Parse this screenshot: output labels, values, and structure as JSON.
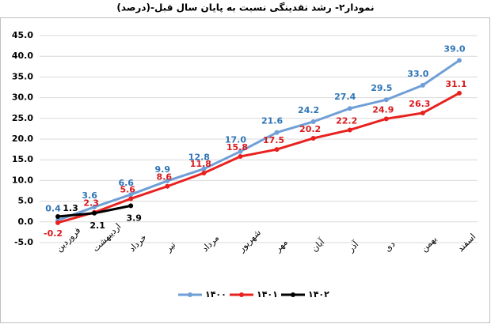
{
  "chart_data": {
    "type": "line",
    "title": "نمودار۲- رشد نقدینگی نسبت به پایان سال قبل-(درصد)",
    "categories": [
      "فروردین",
      "اردیبهشت",
      "خرداد",
      "تیر",
      "مرداد",
      "شهریور",
      "مهر",
      "آبان",
      "آذر",
      "دی",
      "بهمن",
      "اسفند"
    ],
    "series": [
      {
        "name": "۱۴۰۰",
        "color": "#6f9fd6",
        "label_color": "#2e75b6",
        "values": [
          0.4,
          3.6,
          6.6,
          9.9,
          12.8,
          17.0,
          21.6,
          24.2,
          27.4,
          29.5,
          33.0,
          39.0
        ],
        "value_labels": [
          "0.4",
          "3.6",
          "6.6",
          "9.9",
          "12.8",
          "17.0",
          "21.6",
          "24.2",
          "27.4",
          "29.5",
          "33.0",
          "39.0"
        ]
      },
      {
        "name": "۱۴۰۱",
        "color": "#e8211f",
        "label_color": "#d9191c",
        "values": [
          -0.2,
          2.3,
          5.6,
          8.6,
          11.8,
          15.8,
          17.5,
          20.2,
          22.2,
          24.9,
          26.3,
          31.1
        ],
        "value_labels": [
          "-0.2",
          "2.3",
          "5.6",
          "8.6",
          "11.8",
          "15.8",
          "17.5",
          "20.2",
          "22.2",
          "24.9",
          "26.3",
          "31.1"
        ]
      },
      {
        "name": "۱۴۰۲",
        "color": "#000000",
        "label_color": "#000000",
        "values": [
          1.3,
          2.1,
          3.9,
          null,
          null,
          null,
          null,
          null,
          null,
          null,
          null,
          null
        ],
        "value_labels": [
          "1.3",
          "2.1",
          "3.9",
          null,
          null,
          null,
          null,
          null,
          null,
          null,
          null,
          null
        ]
      }
    ],
    "ylim": [
      -5,
      45
    ],
    "yticks": [
      {
        "value": -5,
        "label": "-5.0"
      },
      {
        "value": 0,
        "label": "0.0"
      },
      {
        "value": 5,
        "label": "5.0"
      },
      {
        "value": 10,
        "label": "10.0"
      },
      {
        "value": 15,
        "label": "15.0"
      },
      {
        "value": 20,
        "label": "20.0"
      },
      {
        "value": 25,
        "label": "25.0"
      },
      {
        "value": 30,
        "label": "30.0"
      },
      {
        "value": 35,
        "label": "35.0"
      },
      {
        "value": 40,
        "label": "40.0"
      },
      {
        "value": 45,
        "label": "45.0"
      }
    ],
    "grid": true,
    "legend": "bottom"
  }
}
